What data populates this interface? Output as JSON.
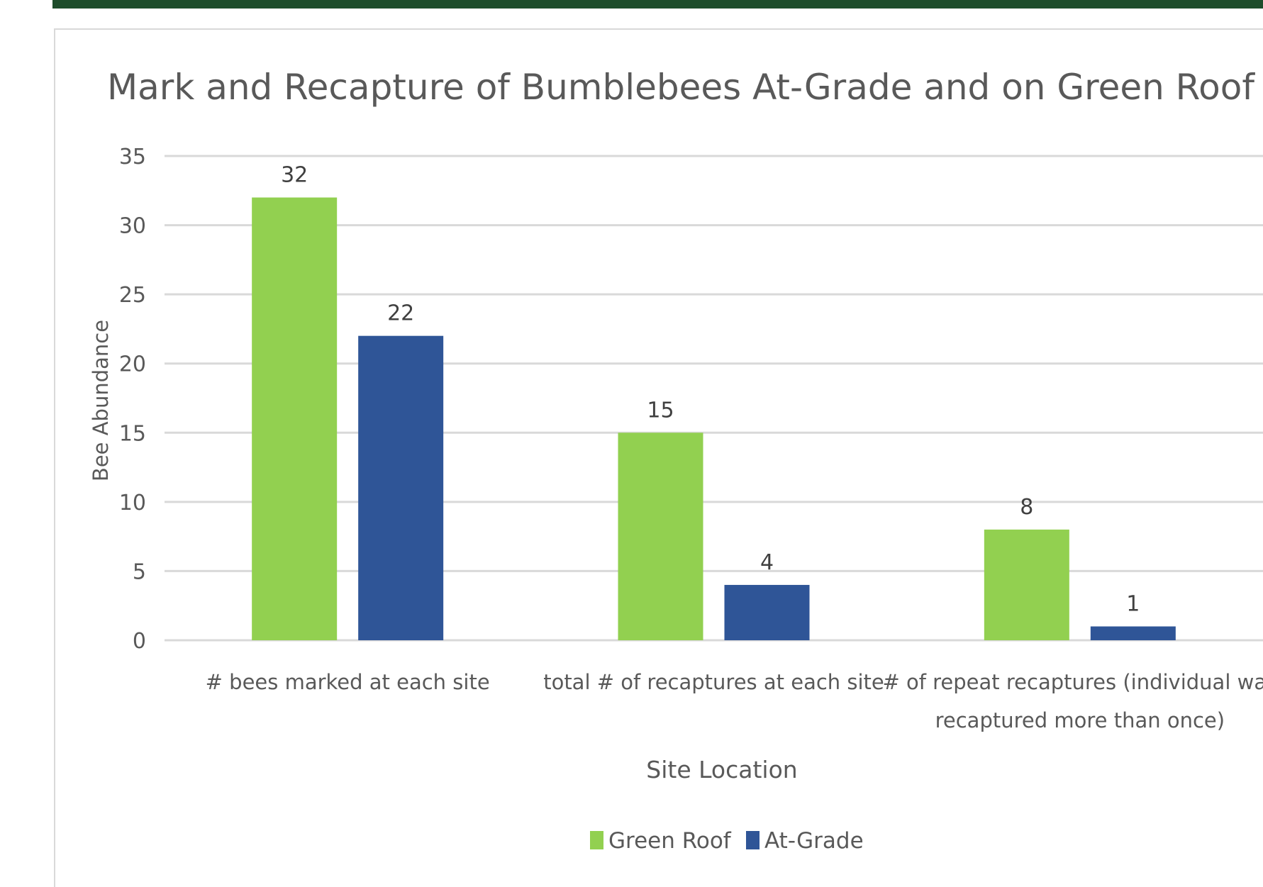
{
  "chart_data": {
    "type": "bar",
    "title": "Mark and Recapture of Bumblebees At-Grade and on Green Roof",
    "xlabel": "Site Location",
    "ylabel": "Bee Abundance",
    "ylim": [
      0,
      35
    ],
    "yticks": [
      0,
      5,
      10,
      15,
      20,
      25,
      30,
      35
    ],
    "grid": true,
    "legend_position": "bottom",
    "categories": [
      [
        "# bees marked at each site"
      ],
      [
        "total # of recaptures at each site"
      ],
      [
        "# of repeat recaptures (individual was",
        "recaptured more than once)"
      ]
    ],
    "series": [
      {
        "name": "Green Roof",
        "color": "#92d050",
        "values": [
          32,
          15,
          8
        ]
      },
      {
        "name": "At-Grade",
        "color": "#2f5597",
        "values": [
          22,
          4,
          1
        ]
      }
    ]
  }
}
